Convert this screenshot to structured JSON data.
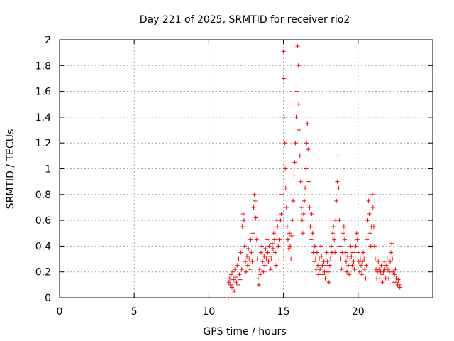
{
  "chart_data": {
    "type": "scatter",
    "title": "Day 221 of 2025, SRMTID for receiver rio2",
    "xlabel": "GPS time / hours",
    "ylabel": "SRMTID / TECUs",
    "xlim": [
      0,
      25
    ],
    "ylim": [
      0,
      2
    ],
    "xticks": [
      "0",
      "5",
      "10",
      "15",
      "20"
    ],
    "yticks": [
      "0",
      "0.2",
      "0.4",
      "0.6",
      "0.8",
      "1",
      "1.2",
      "1.4",
      "1.6",
      "1.8",
      "2"
    ],
    "grid": true,
    "marker": "+",
    "color": "#ff0000",
    "series": [
      {
        "name": "rio2",
        "points": [
          [
            11.3,
            0.0
          ],
          [
            11.35,
            0.12
          ],
          [
            11.4,
            0.15
          ],
          [
            11.45,
            0.1
          ],
          [
            11.5,
            0.18
          ],
          [
            11.55,
            0.08
          ],
          [
            11.6,
            0.2
          ],
          [
            11.65,
            0.14
          ],
          [
            11.7,
            0.05
          ],
          [
            11.75,
            0.22
          ],
          [
            11.8,
            0.16
          ],
          [
            11.85,
            0.12
          ],
          [
            11.9,
            0.25
          ],
          [
            11.95,
            0.1
          ],
          [
            12.0,
            0.3
          ],
          [
            12.05,
            0.18
          ],
          [
            12.1,
            0.14
          ],
          [
            12.15,
            0.35
          ],
          [
            12.2,
            0.22
          ],
          [
            12.25,
            0.55
          ],
          [
            12.3,
            0.65
          ],
          [
            12.35,
            0.6
          ],
          [
            12.4,
            0.4
          ],
          [
            12.45,
            0.28
          ],
          [
            12.5,
            0.2
          ],
          [
            12.55,
            0.32
          ],
          [
            12.6,
            0.25
          ],
          [
            12.65,
            0.38
          ],
          [
            12.7,
            0.3
          ],
          [
            12.75,
            0.22
          ],
          [
            12.8,
            0.45
          ],
          [
            12.85,
            0.35
          ],
          [
            12.9,
            0.28
          ],
          [
            12.95,
            0.5
          ],
          [
            13.0,
            0.7
          ],
          [
            13.05,
            0.8
          ],
          [
            13.1,
            0.75
          ],
          [
            13.15,
            0.62
          ],
          [
            13.2,
            0.45
          ],
          [
            13.25,
            0.3
          ],
          [
            13.3,
            0.15
          ],
          [
            13.35,
            0.1
          ],
          [
            13.4,
            0.22
          ],
          [
            13.45,
            0.18
          ],
          [
            13.5,
            0.35
          ],
          [
            13.55,
            0.4
          ],
          [
            13.6,
            0.28
          ],
          [
            13.65,
            0.2
          ],
          [
            13.7,
            0.32
          ],
          [
            13.75,
            0.25
          ],
          [
            13.8,
            0.38
          ],
          [
            13.85,
            0.3
          ],
          [
            13.9,
            0.45
          ],
          [
            13.95,
            0.35
          ],
          [
            14.0,
            0.28
          ],
          [
            14.05,
            0.4
          ],
          [
            14.1,
            0.32
          ],
          [
            14.15,
            0.22
          ],
          [
            14.2,
            0.3
          ],
          [
            14.25,
            0.42
          ],
          [
            14.3,
            0.38
          ],
          [
            14.35,
            0.5
          ],
          [
            14.4,
            0.45
          ],
          [
            14.45,
            0.35
          ],
          [
            14.5,
            0.25
          ],
          [
            14.55,
            0.6
          ],
          [
            14.6,
            0.55
          ],
          [
            14.65,
            0.4
          ],
          [
            14.7,
            0.3
          ],
          [
            14.75,
            0.45
          ],
          [
            14.8,
            0.6
          ],
          [
            14.85,
            0.65
          ],
          [
            14.9,
            0.8
          ],
          [
            15.0,
            1.91
          ],
          [
            15.02,
            1.7
          ],
          [
            15.05,
            1.4
          ],
          [
            15.1,
            1.2
          ],
          [
            15.12,
            1.0
          ],
          [
            15.15,
            0.85
          ],
          [
            15.2,
            0.7
          ],
          [
            15.25,
            0.55
          ],
          [
            15.3,
            0.45
          ],
          [
            15.35,
            0.38
          ],
          [
            15.4,
            0.5
          ],
          [
            15.45,
            0.4
          ],
          [
            15.5,
            0.3
          ],
          [
            15.55,
            0.48
          ],
          [
            15.6,
            0.6
          ],
          [
            15.65,
            0.75
          ],
          [
            15.7,
            0.95
          ],
          [
            15.75,
            1.05
          ],
          [
            15.8,
            1.2
          ],
          [
            15.85,
            1.4
          ],
          [
            15.9,
            1.6
          ],
          [
            15.95,
            1.95
          ],
          [
            16.0,
            1.8
          ],
          [
            16.02,
            1.5
          ],
          [
            16.05,
            1.3
          ],
          [
            16.1,
            1.1
          ],
          [
            16.15,
            0.9
          ],
          [
            16.2,
            0.7
          ],
          [
            16.25,
            0.6
          ],
          [
            16.3,
            0.5
          ],
          [
            16.35,
            0.65
          ],
          [
            16.4,
            0.75
          ],
          [
            16.45,
            0.85
          ],
          [
            16.5,
            1.0
          ],
          [
            16.55,
            1.2
          ],
          [
            16.6,
            1.35
          ],
          [
            16.65,
            1.15
          ],
          [
            16.7,
            0.9
          ],
          [
            16.75,
            0.7
          ],
          [
            16.8,
            0.55
          ],
          [
            16.85,
            0.45
          ],
          [
            16.9,
            0.65
          ],
          [
            16.95,
            0.5
          ],
          [
            17.0,
            0.35
          ],
          [
            17.05,
            0.28
          ],
          [
            17.1,
            0.4
          ],
          [
            17.15,
            0.3
          ],
          [
            17.2,
            0.22
          ],
          [
            17.25,
            0.35
          ],
          [
            17.3,
            0.25
          ],
          [
            17.35,
            0.18
          ],
          [
            17.4,
            0.3
          ],
          [
            17.45,
            0.22
          ],
          [
            17.5,
            0.4
          ],
          [
            17.55,
            0.32
          ],
          [
            17.6,
            0.25
          ],
          [
            17.65,
            0.18
          ],
          [
            17.7,
            0.28
          ],
          [
            17.75,
            0.2
          ],
          [
            17.8,
            0.15
          ],
          [
            17.85,
            0.25
          ],
          [
            17.9,
            0.35
          ],
          [
            17.95,
            0.28
          ],
          [
            18.0,
            0.2
          ],
          [
            18.05,
            0.12
          ],
          [
            18.1,
            0.25
          ],
          [
            18.15,
            0.3
          ],
          [
            18.2,
            0.4
          ],
          [
            18.25,
            0.35
          ],
          [
            18.3,
            0.5
          ],
          [
            18.35,
            0.55
          ],
          [
            18.4,
            0.45
          ],
          [
            18.45,
            0.35
          ],
          [
            18.5,
            0.6
          ],
          [
            18.55,
            0.75
          ],
          [
            18.6,
            0.9
          ],
          [
            18.65,
            1.1
          ],
          [
            18.7,
            0.85
          ],
          [
            18.75,
            0.6
          ],
          [
            18.8,
            0.4
          ],
          [
            18.85,
            0.3
          ],
          [
            18.9,
            0.22
          ],
          [
            18.95,
            0.35
          ],
          [
            19.0,
            0.5
          ],
          [
            19.05,
            0.55
          ],
          [
            19.1,
            0.45
          ],
          [
            19.15,
            0.35
          ],
          [
            19.2,
            0.28
          ],
          [
            19.25,
            0.2
          ],
          [
            19.3,
            0.32
          ],
          [
            19.35,
            0.25
          ],
          [
            19.4,
            0.18
          ],
          [
            19.45,
            0.3
          ],
          [
            19.5,
            0.4
          ],
          [
            19.55,
            0.32
          ],
          [
            19.6,
            0.25
          ],
          [
            19.65,
            0.35
          ],
          [
            19.7,
            0.28
          ],
          [
            19.75,
            0.22
          ],
          [
            19.8,
            0.3
          ],
          [
            19.85,
            0.4
          ],
          [
            19.9,
            0.5
          ],
          [
            19.95,
            0.45
          ],
          [
            20.0,
            0.35
          ],
          [
            20.05,
            0.28
          ],
          [
            20.1,
            0.2
          ],
          [
            20.15,
            0.3
          ],
          [
            20.2,
            0.25
          ],
          [
            20.25,
            0.18
          ],
          [
            20.3,
            0.28
          ],
          [
            20.35,
            0.35
          ],
          [
            20.4,
            0.3
          ],
          [
            20.45,
            0.22
          ],
          [
            20.5,
            0.15
          ],
          [
            20.55,
            0.25
          ],
          [
            20.6,
            0.45
          ],
          [
            20.65,
            0.6
          ],
          [
            20.7,
            0.75
          ],
          [
            20.75,
            0.65
          ],
          [
            20.8,
            0.5
          ],
          [
            20.85,
            0.4
          ],
          [
            20.9,
            0.55
          ],
          [
            20.95,
            0.8
          ],
          [
            21.0,
            0.7
          ],
          [
            21.05,
            0.55
          ],
          [
            21.1,
            0.4
          ],
          [
            21.15,
            0.3
          ],
          [
            21.2,
            0.22
          ],
          [
            21.25,
            0.15
          ],
          [
            21.3,
            0.2
          ],
          [
            21.35,
            0.28
          ],
          [
            21.4,
            0.22
          ],
          [
            21.45,
            0.15
          ],
          [
            21.5,
            0.2
          ],
          [
            21.55,
            0.25
          ],
          [
            21.6,
            0.18
          ],
          [
            21.65,
            0.12
          ],
          [
            21.7,
            0.2
          ],
          [
            21.75,
            0.28
          ],
          [
            21.8,
            0.22
          ],
          [
            21.85,
            0.15
          ],
          [
            21.9,
            0.25
          ],
          [
            21.95,
            0.3
          ],
          [
            22.0,
            0.22
          ],
          [
            22.05,
            0.15
          ],
          [
            22.1,
            0.2
          ],
          [
            22.15,
            0.28
          ],
          [
            22.2,
            0.35
          ],
          [
            22.25,
            0.42
          ],
          [
            22.3,
            0.3
          ],
          [
            22.35,
            0.2
          ],
          [
            22.4,
            0.12
          ],
          [
            22.45,
            0.18
          ],
          [
            22.5,
            0.22
          ],
          [
            22.55,
            0.15
          ],
          [
            22.6,
            0.12
          ],
          [
            22.65,
            0.1
          ],
          [
            22.7,
            0.14
          ],
          [
            22.75,
            0.1
          ],
          [
            22.8,
            0.08
          ]
        ]
      }
    ]
  }
}
